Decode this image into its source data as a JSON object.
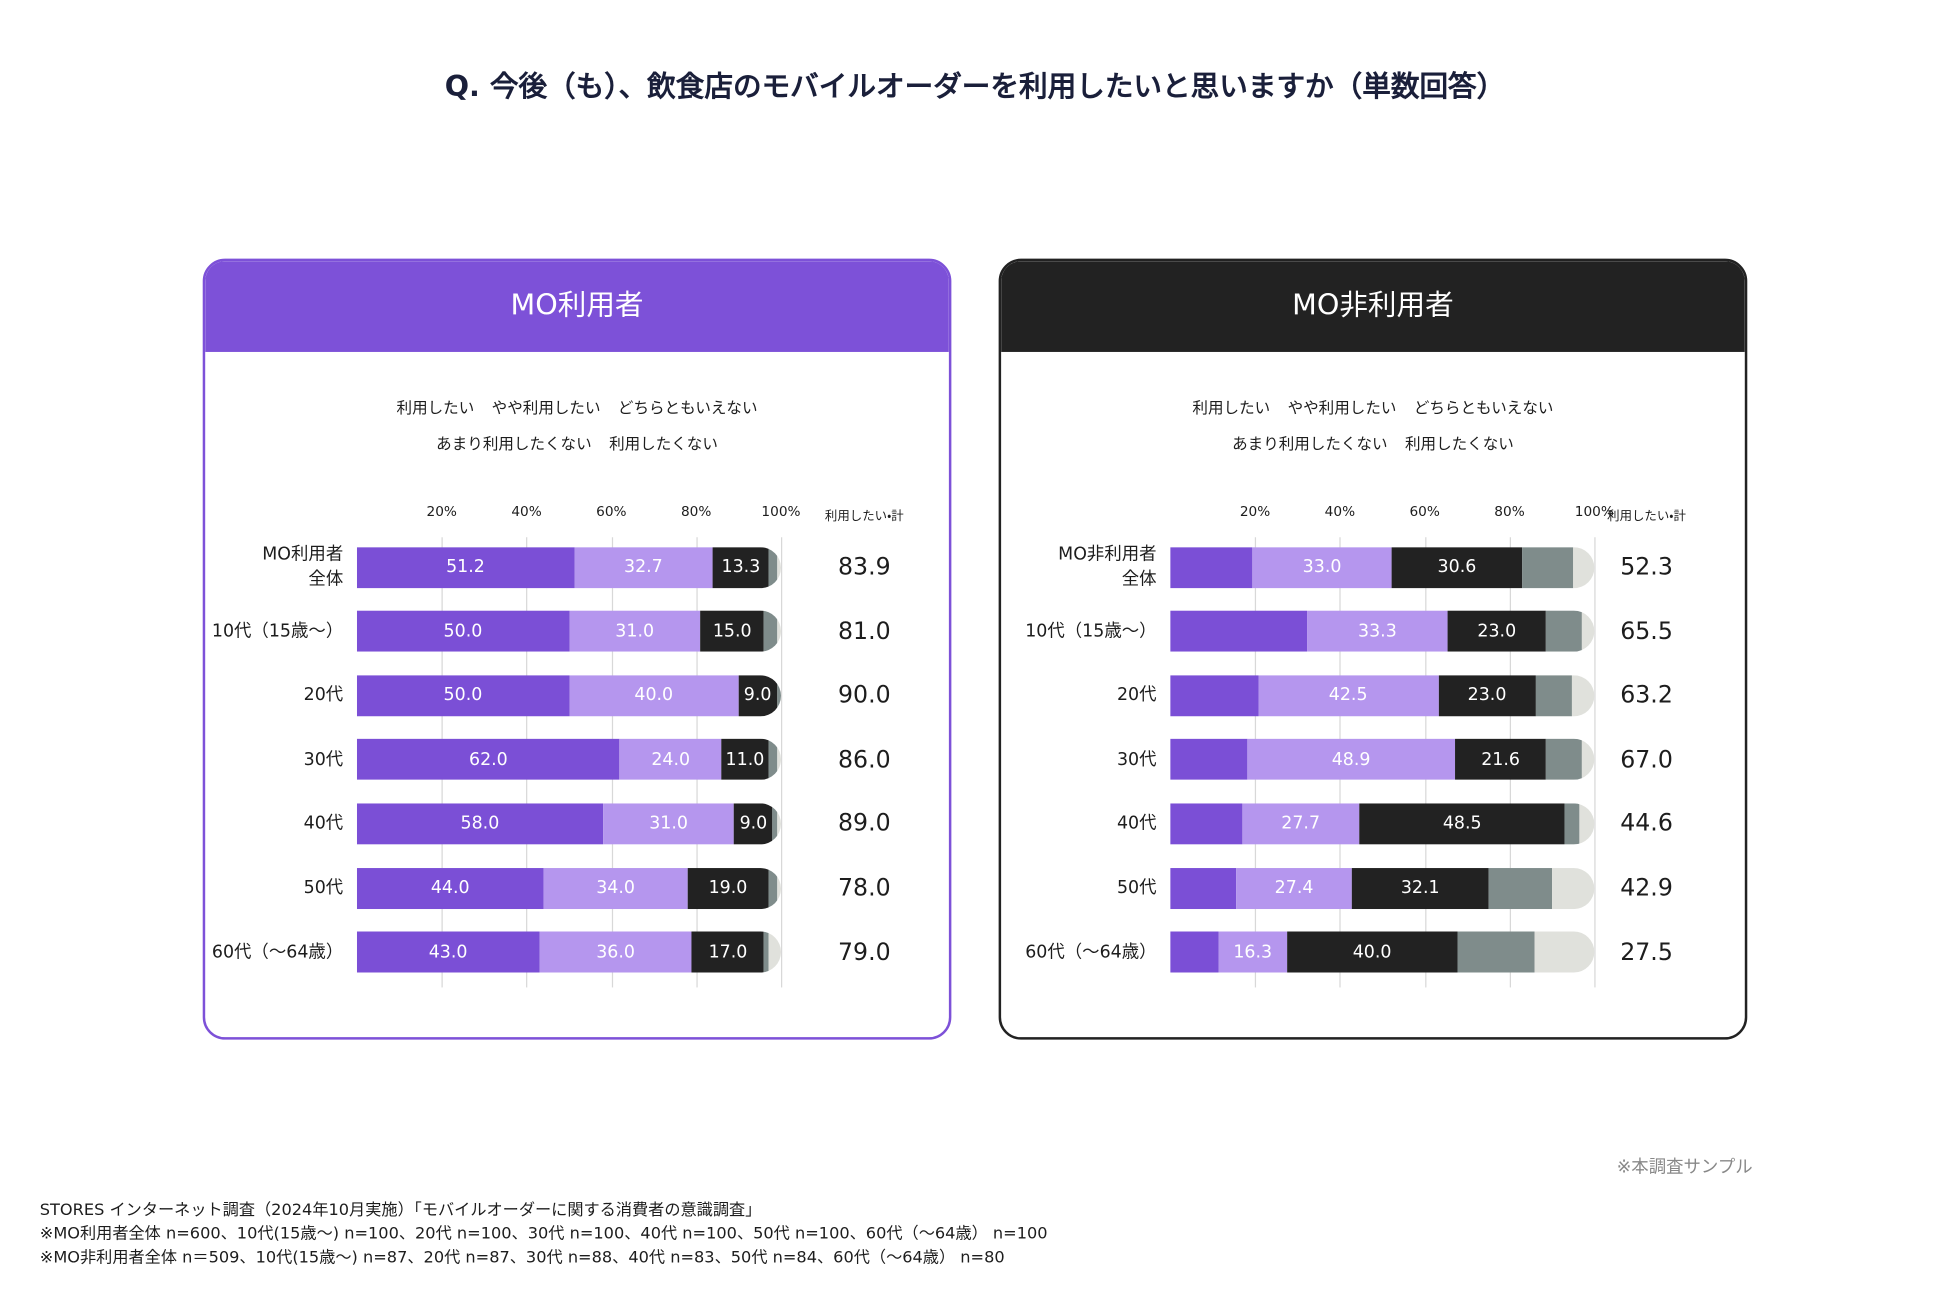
{
  "title": "Q. 今後（も）、飲食店のモバイルオーダーを利用したいと思いますか（単数回答）",
  "sample_note": "※本調査サンプル",
  "footnotes": [
    "STORES インターネット調査（2024年10月実施）「モバイルオーダーに関する消費者の意識調査」",
    "※MO利用者全体 n=600、10代(15歳〜) n=100、20代 n=100、30代 n=100、40代 n=100、50代 n=100、60代（〜64歳） n=100",
    "※MO非利用者全体 n＝509、10代(15歳〜) n=87、20代 n=87、30代 n=88、40代 n=83、50代 n=84、60代（〜64歳） n=80"
  ],
  "chart_data": [
    {
      "type": "stacked_bar_horizontal",
      "panel_title": "MO利用者",
      "panel_color": "#7d51d8",
      "categories": [
        "MO利用者\n全体",
        "10代（15歳〜）",
        "20代",
        "30代",
        "40代",
        "50代",
        "60代（〜64歳）"
      ],
      "xlim": [
        0,
        100
      ],
      "xticks": [
        {
          "value": 20,
          "label": "20%"
        },
        {
          "value": 40,
          "label": "40%"
        },
        {
          "value": 60,
          "label": "60%"
        },
        {
          "value": 80,
          "label": "80%"
        },
        {
          "value": 100,
          "label": "100%"
        }
      ],
      "grid": true,
      "series": [
        {
          "name": "利用したい",
          "color": "#7b4fd6",
          "values": [
            51.2,
            50,
            50,
            62,
            58,
            44,
            43
          ],
          "value_labels": [
            "51.2",
            "50.0",
            "50.0",
            "62.0",
            "58.0",
            "44.0",
            "43.0"
          ]
        },
        {
          "name": "やや利用したい",
          "color": "#b596ee",
          "values": [
            32.7,
            31,
            40,
            24,
            31,
            34,
            36
          ],
          "value_labels": [
            "32.7",
            "31.0",
            "40.0",
            "24.0",
            "31.0",
            "34.0",
            "36.0"
          ]
        },
        {
          "name": "どちらともいえない",
          "color": "#222222",
          "values": [
            13.3,
            15,
            9,
            11,
            9,
            19,
            17
          ],
          "value_labels": [
            "13.3",
            "15.0",
            "9.0",
            "11.0",
            "9.0",
            "19.0",
            "17.0"
          ]
        },
        {
          "name": "あまり利用したくない",
          "color": "#7f8c8b",
          "values": [
            2,
            3,
            1,
            2,
            1,
            2,
            1
          ]
        },
        {
          "name": "利用したくない",
          "color": "#e0e1dc",
          "values": [
            0.8,
            1,
            0,
            1,
            1,
            1,
            3
          ]
        }
      ],
      "totals": {
        "name": "利用したい・計",
        "values": [
          83.9,
          81,
          90,
          86,
          89,
          78,
          79
        ],
        "value_labels": [
          "83.9",
          "81.0",
          "90.0",
          "86.0",
          "89.0",
          "78.0",
          "79.0"
        ]
      }
    },
    {
      "type": "stacked_bar_horizontal",
      "panel_title": "MO非利用者",
      "panel_color": "#222222",
      "categories": [
        "MO非利用者\n全体",
        "10代（15歳〜）",
        "20代",
        "30代",
        "40代",
        "50代",
        "60代（〜64歳）"
      ],
      "xlim": [
        0,
        100
      ],
      "xticks": [
        {
          "value": 20,
          "label": "20%"
        },
        {
          "value": 40,
          "label": "40%"
        },
        {
          "value": 60,
          "label": "60%"
        },
        {
          "value": 80,
          "label": "80%"
        },
        {
          "value": 100,
          "label": "100%"
        }
      ],
      "grid": true,
      "series": [
        {
          "name": "利用したい",
          "color": "#7b4fd6",
          "values": [
            19.3,
            32.2,
            20.7,
            18.2,
            16.9,
            15.5,
            11.3
          ]
        },
        {
          "name": "やや利用したい",
          "color": "#b596ee",
          "values": [
            33,
            33.3,
            42.5,
            48.9,
            27.7,
            27.4,
            16.3
          ],
          "value_labels": [
            "33.0",
            "33.3",
            "42.5",
            "48.9",
            "27.7",
            "27.4",
            "16.3"
          ]
        },
        {
          "name": "どちらともいえない",
          "color": "#222222",
          "values": [
            30.6,
            23,
            23,
            21.6,
            48.5,
            32.1,
            40
          ],
          "value_labels": [
            "30.6",
            "23.0",
            "23.0",
            "21.6",
            "48.5",
            "32.1",
            "40.0"
          ]
        },
        {
          "name": "あまり利用したくない",
          "color": "#7f8c8b",
          "values": [
            12.1,
            8.5,
            8.5,
            8.3,
            3.5,
            15,
            18.4
          ]
        },
        {
          "name": "利用したくない",
          "color": "#e0e1dc",
          "values": [
            5,
            3,
            5.3,
            3,
            3.4,
            10,
            14
          ]
        }
      ],
      "totals": {
        "name": "利用したい・計",
        "values": [
          52.3,
          65.5,
          63.2,
          67,
          44.6,
          42.9,
          27.5
        ],
        "value_labels": [
          "52.3",
          "65.5",
          "63.2",
          "67.0",
          "44.6",
          "42.9",
          "27.5"
        ]
      }
    }
  ]
}
